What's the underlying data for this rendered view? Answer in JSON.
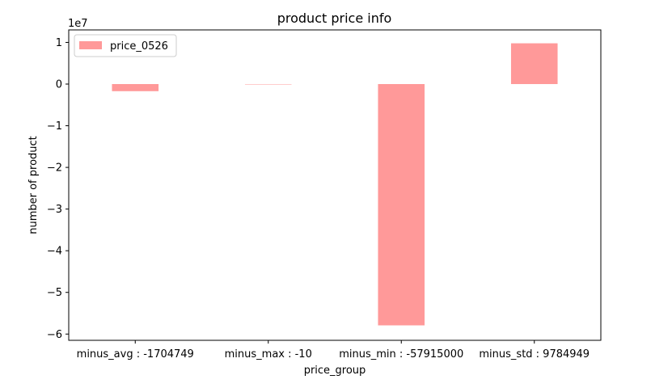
{
  "chart_data": {
    "type": "bar",
    "title": "product price info",
    "xlabel": "price_group",
    "ylabel": "number of product",
    "offset_label": "1e7",
    "categories": [
      "minus_avg : -1704749",
      "minus_max : -10",
      "minus_min : -57915000",
      "minus_std : 9784949"
    ],
    "series": [
      {
        "name": "price_0526",
        "values": [
          -1704749,
          -10,
          -57915000,
          9784949
        ],
        "color": "#ff9999"
      }
    ],
    "ylim": [
      -61500000,
      13000000
    ],
    "yticks": [
      1,
      0,
      -1,
      -2,
      -3,
      -4,
      -5,
      -6
    ],
    "ytick_labels": [
      "1",
      "0",
      "−1",
      "−2",
      "−3",
      "−4",
      "−5",
      "−6"
    ],
    "ytick_scale": 10000000,
    "grid": false,
    "legend": "upper-left"
  }
}
